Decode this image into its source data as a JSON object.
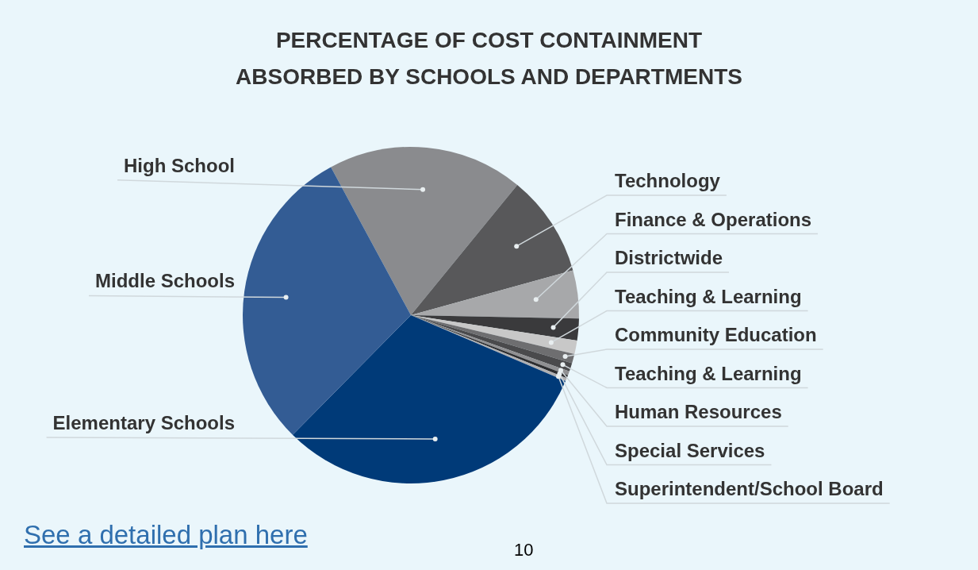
{
  "chart_data": {
    "type": "pie",
    "title": "PERCENTAGE OF COST CONTAINMENT ABSORBED BY SCHOOLS AND DEPARTMENTS",
    "categories": [
      "High School",
      "Technology",
      "Finance & Operations",
      "Districtwide",
      "Teaching & Learning",
      "Community Education",
      "Teaching & Learning",
      "Human Resources",
      "Special Services",
      "Superintendent/School Board",
      "Elementary Schools",
      "Middle Schools"
    ],
    "values": [
      18.8,
      9.8,
      4.6,
      2.1,
      1.3,
      0.9,
      0.8,
      0.4,
      0.3,
      0.3,
      31.0,
      29.7
    ],
    "colors": [
      "#8a8b8e",
      "#58585a",
      "#a7a8aa",
      "#3a3a3c",
      "#c8c8c8",
      "#6e6e70",
      "#4a4a4c",
      "#909092",
      "#2e2e30",
      "#b0b0b2",
      "#003a78",
      "#335c94"
    ],
    "legend": false,
    "annotations": [
      "See a detailed plan here",
      "10"
    ]
  }
}
